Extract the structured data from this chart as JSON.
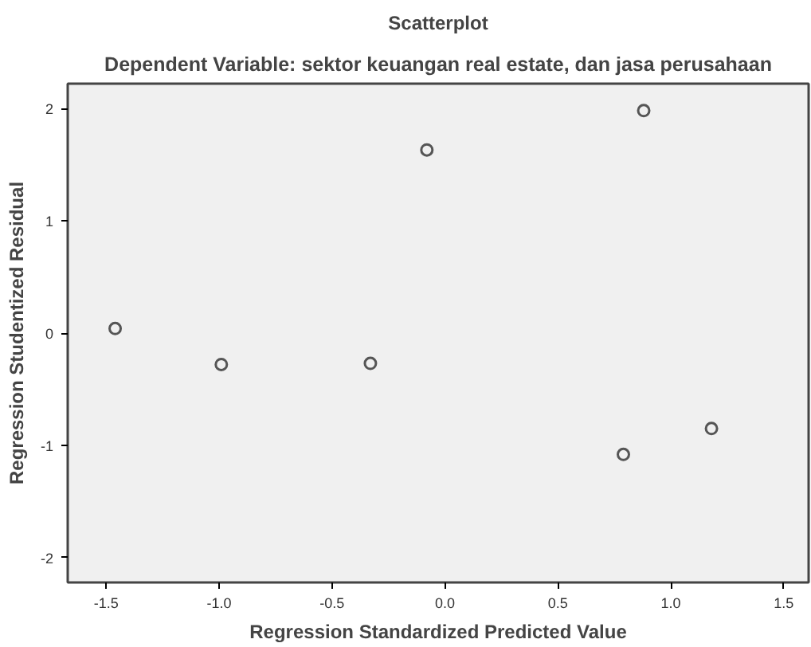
{
  "chart_data": {
    "type": "scatter",
    "title": "Scatterplot",
    "subtitle": "Dependent Variable: sektor keuangan real estate, dan jasa perusahaan",
    "xlabel": "Regression Standardized Predicted Value",
    "ylabel": "Regression Studentized Residual",
    "x": [
      -1.46,
      -0.99,
      -0.33,
      -0.08,
      0.88,
      0.79,
      1.18
    ],
    "values": [
      0.04,
      -0.28,
      -0.27,
      1.63,
      1.98,
      -1.08,
      -0.85
    ],
    "color": "#555555",
    "marker": "circle",
    "xlim": [
      -1.67,
      1.61
    ],
    "ylim": [
      -2.22,
      2.22
    ],
    "xticks": [
      {
        "value": -1.5,
        "label": "-1.5"
      },
      {
        "value": -1.0,
        "label": "-1.0"
      },
      {
        "value": -0.5,
        "label": "-0.5"
      },
      {
        "value": 0.0,
        "label": "0.0"
      },
      {
        "value": 0.5,
        "label": "0.5"
      },
      {
        "value": 1.0,
        "label": "1.0"
      },
      {
        "value": 1.5,
        "label": "1.5"
      }
    ],
    "yticks": [
      -2,
      -1,
      0,
      1,
      2
    ],
    "grid": false
  }
}
